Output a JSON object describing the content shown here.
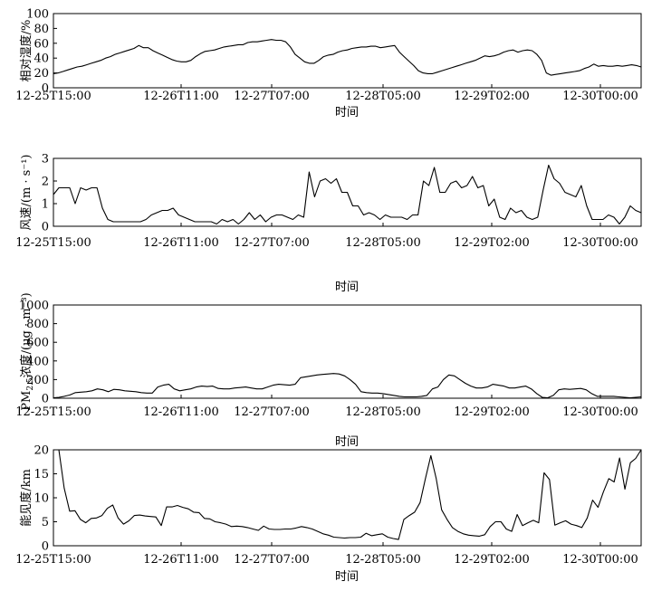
{
  "chart_data": [
    {
      "type": "line",
      "ylabel": "相对湿度/%",
      "xlabel": "时间",
      "ylim": [
        0,
        100
      ],
      "yticks": [
        "0",
        "20",
        "40",
        "60",
        "80",
        "100"
      ],
      "xticks": [
        "12-25T15:00",
        "12-26T11:00",
        "12-27T07:00",
        "12-28T05:00",
        "12-29T02:00",
        "12-30T00:00"
      ],
      "series": [
        {
          "values": [
            19,
            20,
            22,
            24,
            26,
            28,
            29,
            31,
            33,
            35,
            37,
            40,
            42,
            45,
            47,
            49,
            51,
            53,
            57,
            54,
            54,
            50,
            47,
            44,
            41,
            38,
            36,
            35,
            35,
            37,
            42,
            46,
            49,
            50,
            51,
            53,
            55,
            56,
            57,
            58,
            58,
            61,
            62,
            62,
            63,
            64,
            65,
            64,
            64,
            62,
            55,
            45,
            40,
            35,
            33,
            33,
            37,
            42,
            44,
            45,
            48,
            50,
            51,
            53,
            54,
            55,
            55,
            56,
            56,
            54,
            55,
            56,
            57,
            48,
            42,
            36,
            30,
            23,
            20,
            19,
            19,
            21,
            23,
            25,
            27,
            29,
            31,
            33,
            35,
            37,
            40,
            43,
            42,
            43,
            45,
            48,
            50,
            51,
            48,
            50,
            51,
            50,
            45,
            37,
            20,
            17,
            18,
            19,
            20,
            21,
            22,
            23,
            26,
            28,
            32,
            29,
            30,
            29,
            29,
            30,
            29,
            30,
            31,
            30,
            28
          ]
        }
      ]
    },
    {
      "type": "line",
      "ylabel": "风速/(m · s⁻¹)",
      "xlabel": "时间",
      "ylim": [
        0,
        3
      ],
      "yticks": [
        "0",
        "1",
        "2",
        "3"
      ],
      "xticks": [
        "12-25T15:00",
        "12-26T11:00",
        "12-27T07:00",
        "12-28T05:00",
        "12-29T02:00",
        "12-30T00:00"
      ],
      "series": [
        {
          "values": [
            1.4,
            1.7,
            1.7,
            1.7,
            1.0,
            1.7,
            1.6,
            1.7,
            1.7,
            0.8,
            0.3,
            0.2,
            0.2,
            0.2,
            0.2,
            0.2,
            0.2,
            0.3,
            0.5,
            0.6,
            0.7,
            0.7,
            0.8,
            0.5,
            0.4,
            0.3,
            0.2,
            0.2,
            0.2,
            0.2,
            0.1,
            0.3,
            0.2,
            0.3,
            0.1,
            0.3,
            0.6,
            0.3,
            0.5,
            0.2,
            0.4,
            0.5,
            0.5,
            0.4,
            0.3,
            0.5,
            0.4,
            2.4,
            1.3,
            2.0,
            2.1,
            1.9,
            2.1,
            1.5,
            1.5,
            0.9,
            0.9,
            0.5,
            0.6,
            0.5,
            0.3,
            0.5,
            0.4,
            0.4,
            0.4,
            0.3,
            0.5,
            0.5,
            2.0,
            1.8,
            2.6,
            1.5,
            1.5,
            1.9,
            2.0,
            1.7,
            1.8,
            2.2,
            1.7,
            1.8,
            0.9,
            1.2,
            0.4,
            0.3,
            0.8,
            0.6,
            0.7,
            0.4,
            0.3,
            0.4,
            1.6,
            2.7,
            2.1,
            1.9,
            1.5,
            1.4,
            1.3,
            1.8,
            0.9,
            0.3,
            0.3,
            0.3,
            0.5,
            0.4,
            0.1,
            0.4,
            0.9,
            0.7,
            0.6
          ]
        }
      ]
    },
    {
      "type": "line",
      "ylabel": "PM2.5浓度/(μg · m⁻³)",
      "ylabel_main": "PM",
      "ylabel_sub": "2.5",
      "ylabel_rest": "浓度/(μg · m⁻³)",
      "xlabel": "时间",
      "ylim": [
        0,
        1000
      ],
      "yticks": [
        "0",
        "200",
        "400",
        "600",
        "800",
        "1000"
      ],
      "xticks": [
        "12-25T15:00",
        "12-26T11:00",
        "12-27T07:00",
        "12-28T05:00",
        "12-29T02:00",
        "12-30T00:00"
      ],
      "series": [
        {
          "values": [
            5,
            10,
            20,
            35,
            60,
            65,
            70,
            80,
            100,
            90,
            70,
            95,
            90,
            80,
            75,
            70,
            60,
            55,
            55,
            120,
            140,
            150,
            100,
            80,
            90,
            100,
            120,
            130,
            125,
            130,
            105,
            100,
            100,
            110,
            115,
            120,
            110,
            100,
            100,
            120,
            140,
            150,
            145,
            140,
            150,
            220,
            230,
            240,
            250,
            255,
            260,
            265,
            260,
            240,
            200,
            150,
            70,
            60,
            55,
            55,
            50,
            40,
            30,
            20,
            15,
            15,
            15,
            20,
            30,
            100,
            120,
            200,
            250,
            240,
            200,
            160,
            130,
            110,
            110,
            120,
            150,
            140,
            130,
            110,
            110,
            120,
            130,
            100,
            50,
            10,
            5,
            30,
            90,
            100,
            95,
            100,
            105,
            90,
            50,
            20,
            20,
            20,
            20,
            15,
            10,
            5,
            10,
            15
          ]
        }
      ]
    },
    {
      "type": "line",
      "ylabel": "能见度/km",
      "xlabel": "时间",
      "ylim": [
        0,
        20
      ],
      "yticks": [
        "0",
        "5",
        "10",
        "15",
        "20"
      ],
      "xticks": [
        "12-25T15:00",
        "12-26T11:00",
        "12-27T07:00",
        "12-28T05:00",
        "12-29T02:00",
        "12-30T00:00"
      ],
      "series": [
        {
          "values": [
            20,
            20,
            12,
            7.2,
            7.3,
            5.5,
            4.8,
            5.7,
            5.8,
            6.3,
            7.8,
            8.5,
            5.8,
            4.5,
            5.2,
            6.3,
            6.4,
            6.2,
            6.1,
            6.0,
            4.2,
            8.1,
            8.1,
            8.4,
            8.0,
            7.7,
            7.0,
            6.9,
            5.7,
            5.6,
            5.0,
            4.8,
            4.5,
            4.0,
            4.1,
            4.0,
            3.8,
            3.5,
            3.2,
            4.1,
            3.5,
            3.4,
            3.4,
            3.5,
            3.5,
            3.7,
            4.0,
            3.8,
            3.5,
            3.0,
            2.5,
            2.2,
            1.8,
            1.7,
            1.6,
            1.7,
            1.7,
            1.8,
            2.6,
            2.1,
            2.3,
            2.5,
            1.8,
            1.5,
            1.3,
            5.5,
            6.3,
            7.0,
            9.0,
            14,
            18.8,
            14,
            7.5,
            5.5,
            3.8,
            3.0,
            2.5,
            2.2,
            2.1,
            2.0,
            2.3,
            4.0,
            5.0,
            5.0,
            3.5,
            3.0,
            6.5,
            4.2,
            4.8,
            5.3,
            4.8,
            15.2,
            13.8,
            4.3,
            4.8,
            5.2,
            4.5,
            4.2,
            3.8,
            5.8,
            9.5,
            8.0,
            11.2,
            14,
            13.3,
            18.3,
            11.8,
            17.3,
            18.2,
            20
          ]
        }
      ]
    }
  ]
}
